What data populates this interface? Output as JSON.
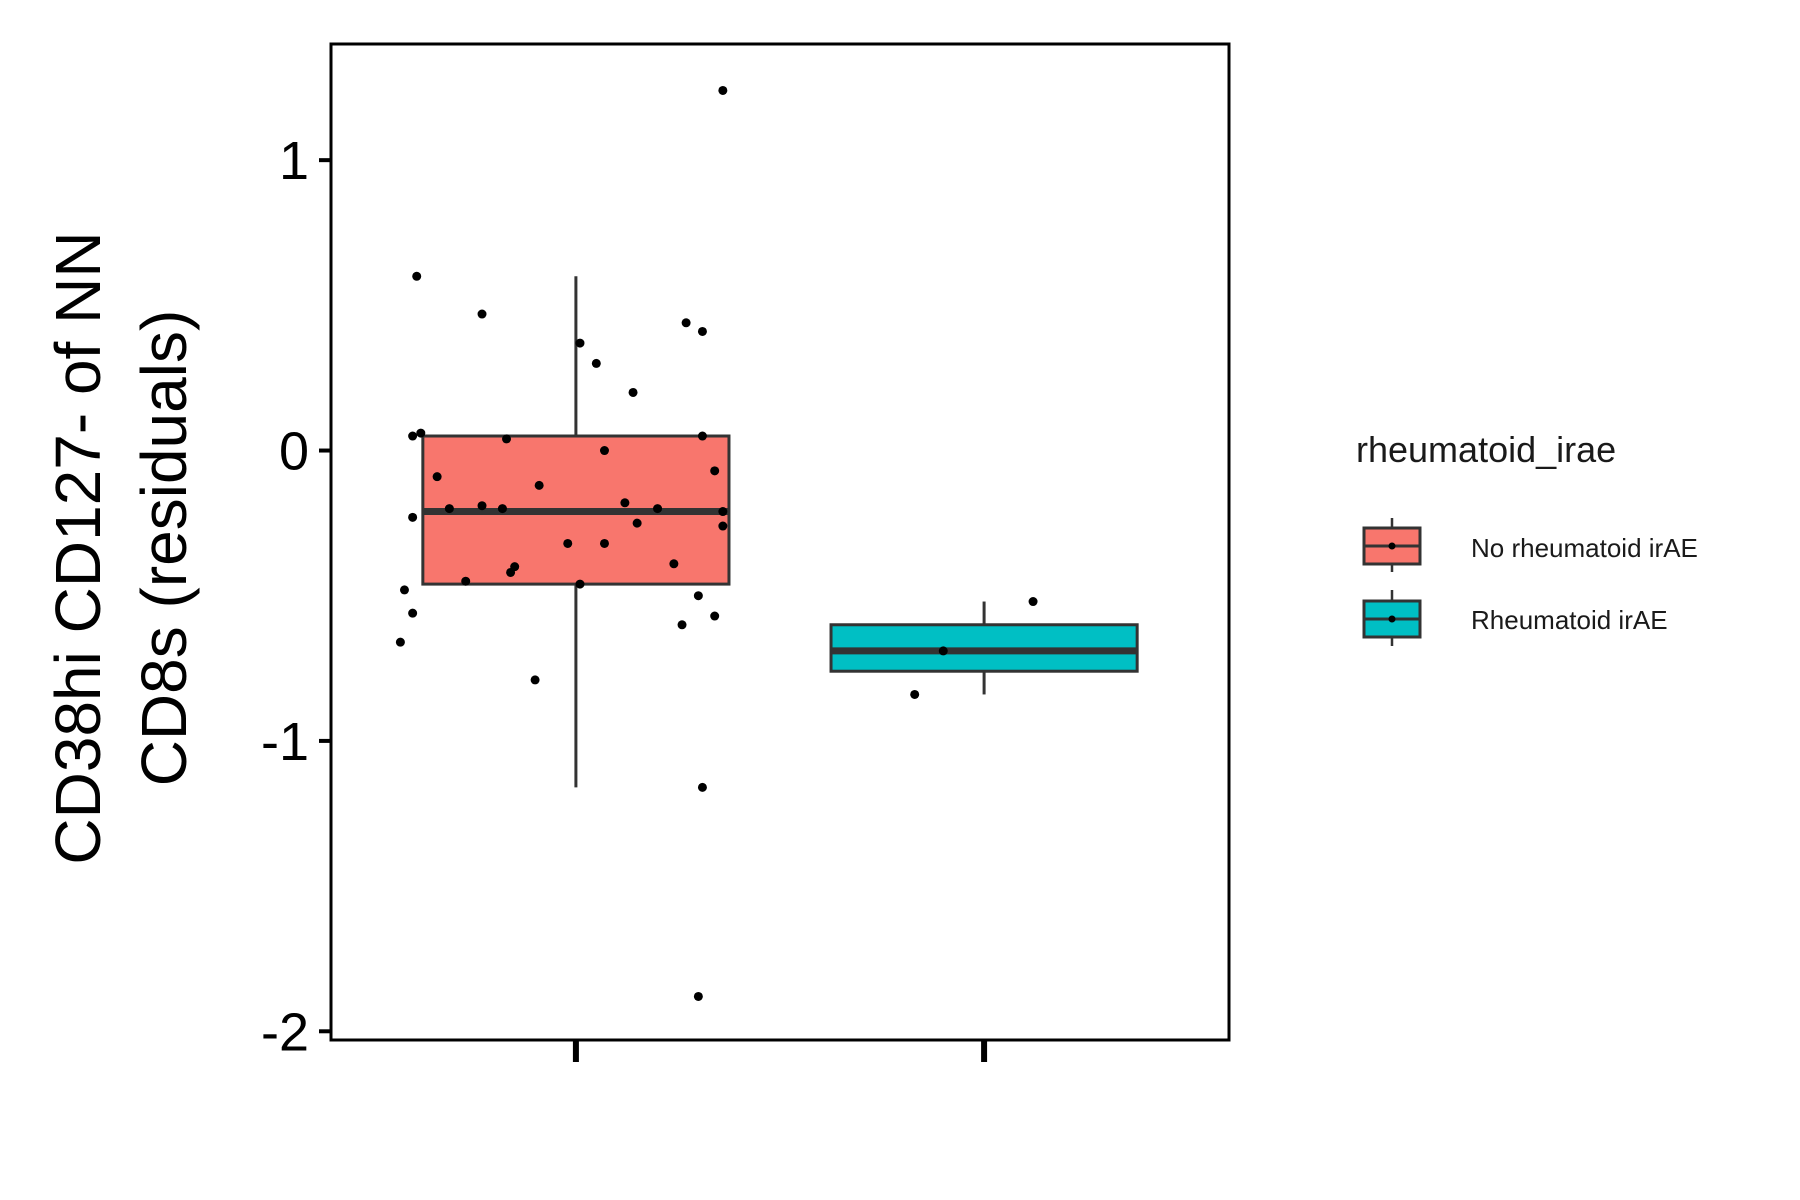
{
  "chart_data": {
    "type": "box",
    "ylabel_lines": [
      "CD38hi CD127- of NN",
      "CD8s (residuals)"
    ],
    "ylim": [
      -2.03,
      1.4
    ],
    "y_ticks": [
      1,
      0,
      -1,
      -2
    ],
    "y_tick_labels": [
      "1",
      "0",
      "-1",
      "-2"
    ],
    "x_tick_labels": [
      "",
      ""
    ],
    "grid": false,
    "legend": {
      "title": "rheumatoid_irae",
      "position": "right",
      "entries": [
        {
          "label": "No rheumatoid irAE",
          "color": "#F8766D"
        },
        {
          "label": "Rheumatoid irAE",
          "color": "#00BFC4"
        }
      ]
    },
    "groups": [
      {
        "name": "No rheumatoid irAE",
        "color": "#F8766D",
        "box": {
          "q1": -0.46,
          "median": -0.21,
          "q3": 0.05,
          "whisker_low": -1.16,
          "whisker_high": 0.6
        },
        "points": [
          {
            "x": -0.39,
            "y": 0.6
          },
          {
            "x": -0.23,
            "y": 0.47
          },
          {
            "x": 0.01,
            "y": 0.37
          },
          {
            "x": 0.05,
            "y": 0.3
          },
          {
            "x": 0.14,
            "y": 0.2
          },
          {
            "x": 0.27,
            "y": 0.44
          },
          {
            "x": 0.31,
            "y": 0.41
          },
          {
            "x": 0.36,
            "y": 1.24
          },
          {
            "x": -0.4,
            "y": 0.05
          },
          {
            "x": -0.38,
            "y": 0.06
          },
          {
            "x": -0.17,
            "y": 0.04
          },
          {
            "x": 0.07,
            "y": 0.0
          },
          {
            "x": 0.31,
            "y": 0.05
          },
          {
            "x": -0.34,
            "y": -0.09
          },
          {
            "x": -0.09,
            "y": -0.12
          },
          {
            "x": 0.12,
            "y": -0.18
          },
          {
            "x": 0.34,
            "y": -0.07
          },
          {
            "x": -0.4,
            "y": -0.23
          },
          {
            "x": -0.31,
            "y": -0.2
          },
          {
            "x": -0.23,
            "y": -0.19
          },
          {
            "x": -0.18,
            "y": -0.2
          },
          {
            "x": 0.15,
            "y": -0.25
          },
          {
            "x": 0.2,
            "y": -0.2
          },
          {
            "x": 0.36,
            "y": -0.21
          },
          {
            "x": 0.36,
            "y": -0.26
          },
          {
            "x": -0.02,
            "y": -0.32
          },
          {
            "x": 0.07,
            "y": -0.32
          },
          {
            "x": 0.24,
            "y": -0.39
          },
          {
            "x": -0.15,
            "y": -0.4
          },
          {
            "x": -0.16,
            "y": -0.42
          },
          {
            "x": -0.27,
            "y": -0.45
          },
          {
            "x": -0.42,
            "y": -0.48
          },
          {
            "x": 0.01,
            "y": -0.46
          },
          {
            "x": 0.3,
            "y": -0.5
          },
          {
            "x": -0.4,
            "y": -0.56
          },
          {
            "x": 0.34,
            "y": -0.57
          },
          {
            "x": 0.26,
            "y": -0.6
          },
          {
            "x": -0.43,
            "y": -0.66
          },
          {
            "x": -0.1,
            "y": -0.79
          },
          {
            "x": 0.31,
            "y": -1.16
          },
          {
            "x": 0.3,
            "y": -1.88
          }
        ]
      },
      {
        "name": "Rheumatoid irAE",
        "color": "#00BFC4",
        "box": {
          "q1": -0.76,
          "median": -0.69,
          "q3": -0.6,
          "whisker_low": -0.84,
          "whisker_high": -0.52
        },
        "points": [
          {
            "x": 0.12,
            "y": -0.52
          },
          {
            "x": -0.1,
            "y": -0.69
          },
          {
            "x": -0.17,
            "y": -0.84
          }
        ]
      }
    ]
  }
}
